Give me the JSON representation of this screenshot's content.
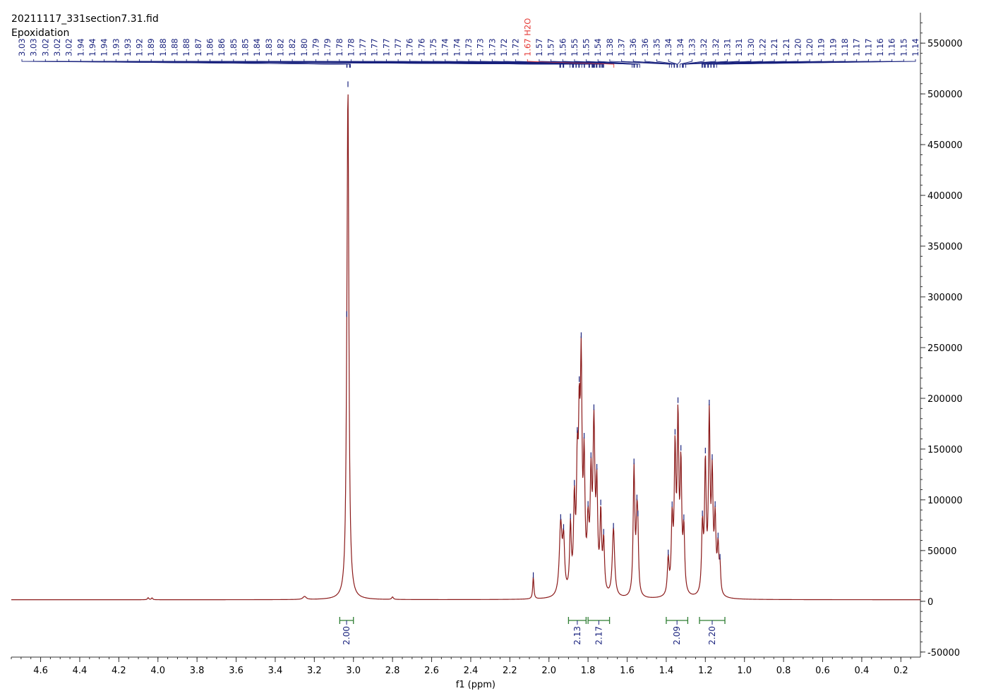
{
  "header": {
    "filename": "20211117_331section7.31.fid",
    "experiment": "Epoxidation"
  },
  "chart_data": {
    "type": "line",
    "title": "20211117_331section7.31.fid",
    "subtitle": "Epoxidation",
    "xlabel": "f1 (ppm)",
    "ylabel": "",
    "xlim": [
      4.75,
      0.1
    ],
    "ylim": [
      -55000,
      580000
    ],
    "x_reversed": true,
    "grid": false,
    "x_ticks": [
      "4.6",
      "4.4",
      "4.2",
      "4.0",
      "3.8",
      "3.6",
      "3.4",
      "3.2",
      "3.0",
      "2.8",
      "2.6",
      "2.4",
      "2.2",
      "2.0",
      "1.8",
      "1.6",
      "1.4",
      "1.2",
      "1.0",
      "0.8",
      "0.6",
      "0.4",
      "0.2"
    ],
    "y_ticks": [
      "550000",
      "500000",
      "450000",
      "400000",
      "350000",
      "300000",
      "250000",
      "200000",
      "150000",
      "100000",
      "50000",
      "0",
      "-50000"
    ],
    "series": [
      {
        "color": "#8b1a1a",
        "peaks": [
          {
            "ppm": 4.05,
            "height": 2000,
            "width": 0.004
          },
          {
            "ppm": 4.03,
            "height": 1800,
            "width": 0.004
          },
          {
            "ppm": 3.25,
            "height": 3000,
            "width": 0.01
          },
          {
            "ppm": 3.028,
            "height": 482000,
            "width": 0.0055
          },
          {
            "ppm": 3.034,
            "height": 60000,
            "width": 0.005
          },
          {
            "ppm": 2.8,
            "height": 2500,
            "width": 0.005
          },
          {
            "ppm": 2.08,
            "height": 22000,
            "width": 0.0035
          },
          {
            "ppm": 1.94,
            "height": 70000,
            "width": 0.008
          },
          {
            "ppm": 1.925,
            "height": 50000,
            "width": 0.006
          },
          {
            "ppm": 1.89,
            "height": 65000,
            "width": 0.005
          },
          {
            "ppm": 1.87,
            "height": 85000,
            "width": 0.005
          },
          {
            "ppm": 1.855,
            "height": 110000,
            "width": 0.005
          },
          {
            "ppm": 1.845,
            "height": 140000,
            "width": 0.005
          },
          {
            "ppm": 1.835,
            "height": 205000,
            "width": 0.005
          },
          {
            "ppm": 1.82,
            "height": 120000,
            "width": 0.005
          },
          {
            "ppm": 1.8,
            "height": 60000,
            "width": 0.006
          },
          {
            "ppm": 1.785,
            "height": 100000,
            "width": 0.005
          },
          {
            "ppm": 1.77,
            "height": 160000,
            "width": 0.006
          },
          {
            "ppm": 1.755,
            "height": 95000,
            "width": 0.005
          },
          {
            "ppm": 1.735,
            "height": 75000,
            "width": 0.005
          },
          {
            "ppm": 1.72,
            "height": 50000,
            "width": 0.005
          },
          {
            "ppm": 1.67,
            "height": 68000,
            "width": 0.007
          },
          {
            "ppm": 1.565,
            "height": 125000,
            "width": 0.005
          },
          {
            "ppm": 1.55,
            "height": 70000,
            "width": 0.005
          },
          {
            "ppm": 1.545,
            "height": 40000,
            "width": 0.004
          },
          {
            "ppm": 1.39,
            "height": 35000,
            "width": 0.005
          },
          {
            "ppm": 1.37,
            "height": 70000,
            "width": 0.005
          },
          {
            "ppm": 1.355,
            "height": 135000,
            "width": 0.005
          },
          {
            "ppm": 1.34,
            "height": 165000,
            "width": 0.005
          },
          {
            "ppm": 1.325,
            "height": 120000,
            "width": 0.005
          },
          {
            "ppm": 1.31,
            "height": 60000,
            "width": 0.005
          },
          {
            "ppm": 1.215,
            "height": 65000,
            "width": 0.005
          },
          {
            "ppm": 1.2,
            "height": 125000,
            "width": 0.005
          },
          {
            "ppm": 1.18,
            "height": 170000,
            "width": 0.005
          },
          {
            "ppm": 1.165,
            "height": 110000,
            "width": 0.005
          },
          {
            "ppm": 1.15,
            "height": 70000,
            "width": 0.005
          },
          {
            "ppm": 1.135,
            "height": 45000,
            "width": 0.005
          },
          {
            "ppm": 1.125,
            "height": 25000,
            "width": 0.004
          }
        ]
      }
    ],
    "peak_labels": {
      "color": "#1a237e",
      "highlight_color": "#e53935",
      "values": [
        "3.03",
        "3.03",
        "3.02",
        "3.02",
        "3.02",
        "1.94",
        "1.94",
        "1.94",
        "1.93",
        "1.93",
        "1.92",
        "1.89",
        "1.88",
        "1.88",
        "1.88",
        "1.87",
        "1.86",
        "1.86",
        "1.85",
        "1.85",
        "1.84",
        "1.83",
        "1.82",
        "1.82",
        "1.80",
        "1.79",
        "1.79",
        "1.78",
        "1.78",
        "1.77",
        "1.77",
        "1.77",
        "1.77",
        "1.76",
        "1.76",
        "1.75",
        "1.74",
        "1.74",
        "1.73",
        "1.73",
        "1.73",
        "1.72",
        "1.72",
        "1.67 H2O",
        "1.57",
        "1.57",
        "1.56",
        "1.55",
        "1.55",
        "1.54",
        "1.38",
        "1.37",
        "1.36",
        "1.36",
        "1.35",
        "1.34",
        "1.34",
        "1.33",
        "1.32",
        "1.32",
        "1.31",
        "1.31",
        "1.30",
        "1.22",
        "1.21",
        "1.21",
        "1.20",
        "1.20",
        "1.19",
        "1.19",
        "1.18",
        "1.17",
        "1.17",
        "1.16",
        "1.16",
        "1.15",
        "1.14"
      ],
      "highlighted_index": 43
    },
    "integrals": [
      {
        "from": 3.07,
        "to": 3.0,
        "value": "2.00"
      },
      {
        "from": 1.9,
        "to": 1.81,
        "value": "2.13"
      },
      {
        "from": 1.8,
        "to": 1.69,
        "value": "2.17"
      },
      {
        "from": 1.4,
        "to": 1.29,
        "value": "2.09"
      },
      {
        "from": 1.23,
        "to": 1.1,
        "value": "2.20"
      }
    ],
    "colors": {
      "spectrum": "#8b1a1a",
      "peak_marker": "#1a237e",
      "integral": "#2e7d32",
      "integral_label": "#1a237e",
      "axis": "#333333"
    }
  }
}
